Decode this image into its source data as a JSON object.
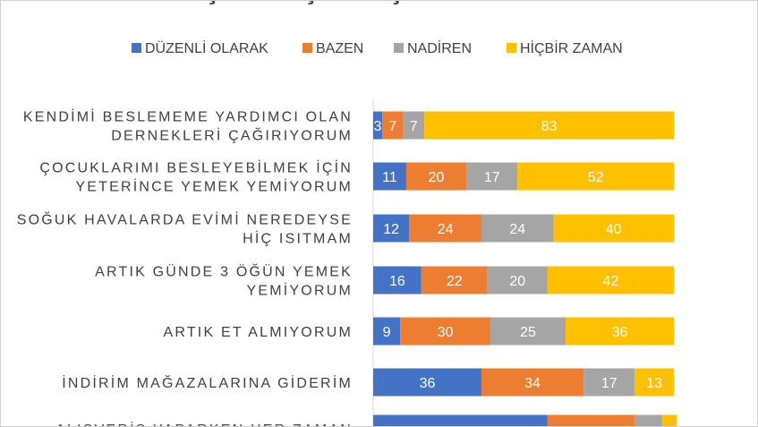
{
  "chart_data": {
    "type": "bar",
    "orientation": "horizontal",
    "stacked": true,
    "title": "",
    "legend_position": "top",
    "grid": false,
    "xlim": [
      0,
      100
    ],
    "categories": [
      [
        "KENDİMİ BESLEMEME YARDIMCI OLAN",
        "DERNEKLERİ ÇAĞIRIYORUM"
      ],
      [
        "ÇOCUKLARIMI BESLEYEBİLMEK İÇİN",
        "YETERİNCE YEMEK YEMİYORUM"
      ],
      [
        "SOĞUK HAVALARDA EVİMİ NEREDEYSE",
        "HİÇ ISITMAM"
      ],
      [
        "ARTIK GÜNDE 3 ÖĞÜN YEMEK",
        "YEMİYORUM"
      ],
      [
        "ARTIK ET ALMIYORUM"
      ],
      [
        "İNDİRİM MAĞAZALARINA GİDERİM"
      ],
      [
        "ALIŞVERİŞ YAPARKEN HER ZAMAN"
      ]
    ],
    "series": [
      {
        "name": "DÜZENLİ OLARAK",
        "color": "#4472C4",
        "label_color": "#ffffff",
        "values": [
          3,
          11,
          12,
          16,
          9,
          36,
          58
        ]
      },
      {
        "name": "BAZEN",
        "color": "#ED7D31",
        "label_color": "#ffffff",
        "values": [
          7,
          20,
          24,
          22,
          30,
          34,
          29
        ]
      },
      {
        "name": "NADİREN",
        "color": "#A5A5A5",
        "label_color": "#ffffff",
        "values": [
          7,
          17,
          24,
          20,
          25,
          17,
          9
        ]
      },
      {
        "name": "HİÇBİR ZAMAN",
        "color": "#FFC000",
        "label_color": "#ffffff",
        "values": [
          83,
          52,
          40,
          42,
          36,
          13,
          5
        ]
      }
    ],
    "shown_labels": [
      [
        true,
        true,
        true,
        true
      ],
      [
        true,
        true,
        true,
        true
      ],
      [
        true,
        true,
        true,
        true
      ],
      [
        true,
        true,
        true,
        true
      ],
      [
        true,
        true,
        true,
        true
      ],
      [
        true,
        true,
        true,
        true
      ],
      [
        false,
        false,
        false,
        false
      ]
    ]
  }
}
